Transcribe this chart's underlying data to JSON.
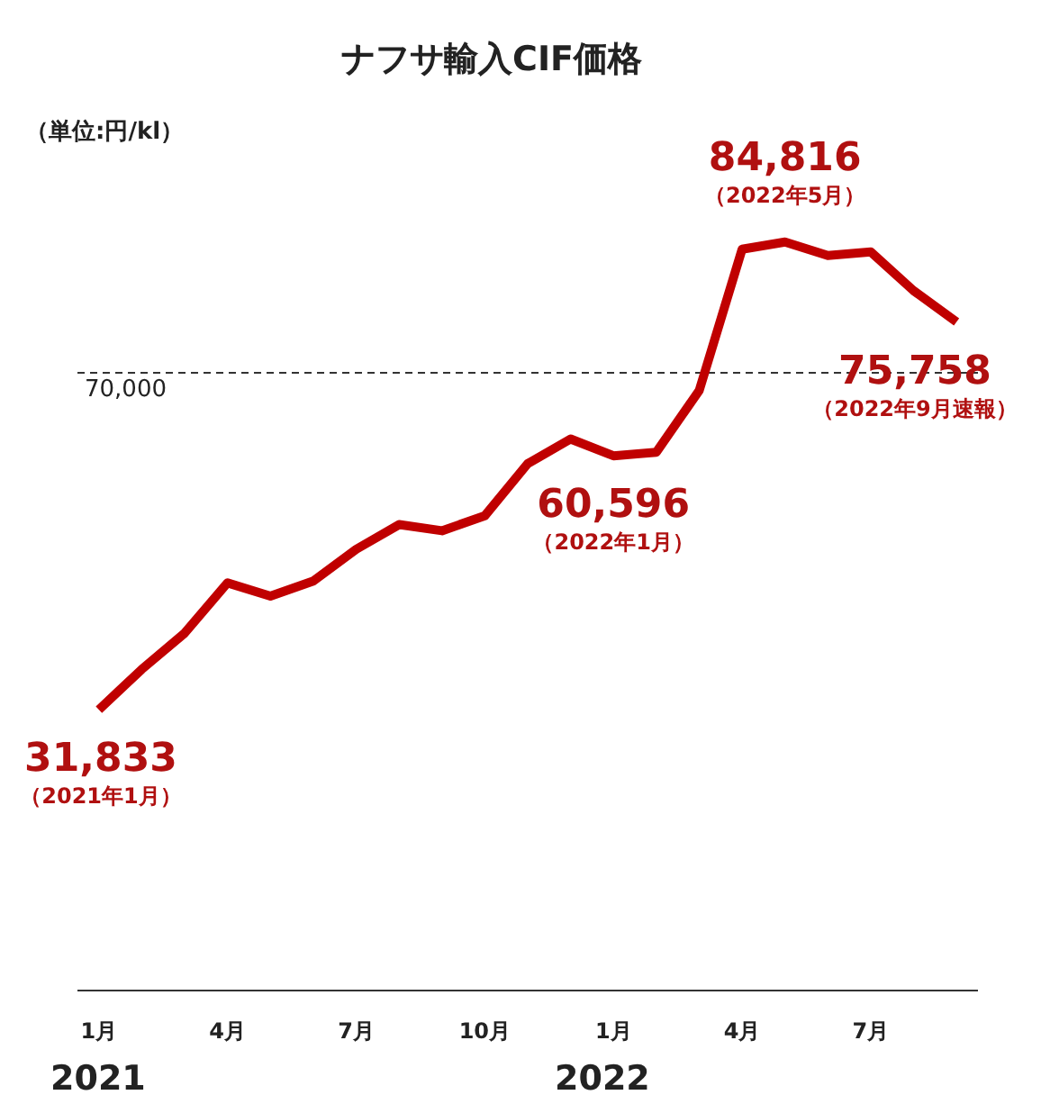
{
  "chart_data": {
    "type": "line",
    "title": "ナフサ輸入CIF価格",
    "annotations": [
      "（単位:円/kl）",
      "2021",
      "2022",
      "（2021年1月）",
      "（2022年1月）",
      "（2022年5月）",
      "（2022年9月速報）"
    ],
    "x": [
      "2021-01",
      "2021-02",
      "2021-03",
      "2021-04",
      "2021-05",
      "2021-06",
      "2021-07",
      "2021-08",
      "2021-09",
      "2021-10",
      "2021-11",
      "2021-12",
      "2022-01",
      "2022-02",
      "2022-03",
      "2022-04",
      "2022-05",
      "2022-06",
      "2022-07",
      "2022-08",
      "2022-09"
    ],
    "series": [
      {
        "color": "#c00000",
        "values": [
          31833,
          36400,
          40500,
          46200,
          44700,
          46400,
          50000,
          52800,
          52100,
          53800,
          59700,
          62500,
          60596,
          61000,
          68000,
          84000,
          84816,
          83300,
          83700,
          79300,
          75758
        ],
        "value_labels": [
          "31,833",
          null,
          null,
          null,
          null,
          null,
          null,
          null,
          null,
          null,
          null,
          null,
          "60,596",
          null,
          null,
          null,
          "84,816",
          null,
          null,
          null,
          "75,758"
        ]
      }
    ],
    "xlim": [
      "2020-12-16",
      "2022-09-16"
    ],
    "xticks": [
      {
        "value": "2021-01",
        "label": "1月"
      },
      {
        "value": "2021-04",
        "label": "4月"
      },
      {
        "value": "2021-07",
        "label": "7月"
      },
      {
        "value": "2021-10",
        "label": "10月"
      },
      {
        "value": "2022-01",
        "label": "1月"
      },
      {
        "value": "2022-04",
        "label": "4月"
      },
      {
        "value": "2022-07",
        "label": "7月"
      }
    ],
    "tick_labels": "x",
    "ref_lines": [
      {
        "axis": "y",
        "value": 70000,
        "label": "70,000",
        "color": "#333333",
        "line_style": "dashed"
      }
    ],
    "grid": false,
    "legend": false,
    "marker": "none",
    "line_style": "solid"
  }
}
